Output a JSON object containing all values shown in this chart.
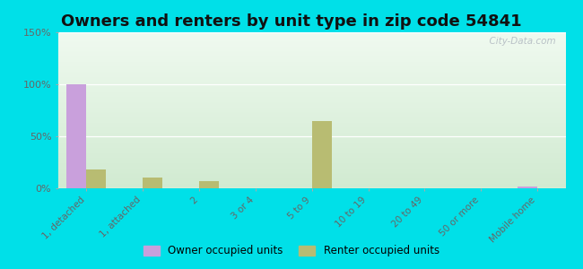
{
  "title": "Owners and renters by unit type in zip code 54841",
  "categories": [
    "1, detached",
    "1, attached",
    "2",
    "3 or 4",
    "5 to 9",
    "10 to 19",
    "20 to 49",
    "50 or more",
    "Mobile home"
  ],
  "owner_values": [
    100,
    0,
    0,
    0,
    0,
    0,
    0,
    0,
    2
  ],
  "renter_values": [
    18,
    10,
    7,
    0,
    65,
    0,
    0,
    0,
    0
  ],
  "owner_color": "#c9a0dc",
  "renter_color": "#b8bc72",
  "background_outer": "#00e0e8",
  "ylim": [
    0,
    150
  ],
  "yticks": [
    0,
    50,
    100,
    150
  ],
  "ytick_labels": [
    "0%",
    "50%",
    "100%",
    "150%"
  ],
  "bar_width": 0.35,
  "title_fontsize": 13,
  "watermark": "  City-Data.com"
}
